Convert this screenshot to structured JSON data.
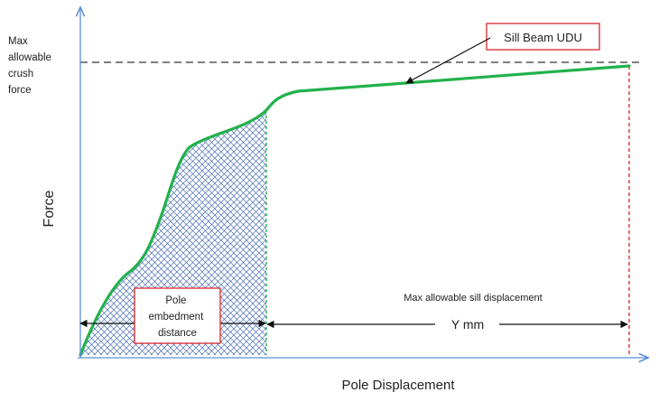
{
  "axes": {
    "y_label": "Force",
    "x_label": "Pole Displacement"
  },
  "threshold_label": [
    "Max",
    "allowable",
    "crush",
    "force"
  ],
  "callout": "Sill Beam UDU",
  "embedment_label": [
    "Pole",
    "embedment",
    "distance"
  ],
  "sill_label": "Max allowable sill displacement",
  "y_mm_label": "Y mm",
  "colors": {
    "axis": "#5b8fd6",
    "curve": "#22b14c",
    "threshold": "#555555",
    "limit": "#e03030",
    "hatch": "#4a6fb5",
    "box_border": "#d9262c",
    "arrow": "#111111"
  }
}
